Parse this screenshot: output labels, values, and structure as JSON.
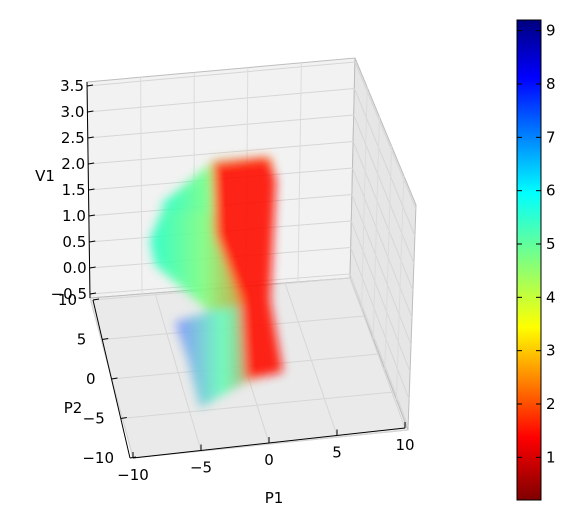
{
  "chart_data": {
    "type": "scatter",
    "projection": "3d",
    "title": "",
    "axes": {
      "x": {
        "label": "P1",
        "ticks": [
          "−10",
          "−5",
          "0",
          "5",
          "10"
        ],
        "tick_values": [
          -10,
          -5,
          0,
          5,
          10
        ],
        "range": [
          -10,
          10
        ]
      },
      "y": {
        "label": "P2",
        "ticks": [
          "−10",
          "−5",
          "0",
          "5",
          "10"
        ],
        "tick_values": [
          -10,
          -5,
          0,
          5,
          10
        ],
        "range": [
          -10,
          10
        ]
      },
      "z": {
        "label": "V1",
        "ticks": [
          "−0.5",
          "0.0",
          "0.5",
          "1.0",
          "1.5",
          "2.0",
          "2.5",
          "3.0",
          "3.5"
        ],
        "tick_values": [
          -0.5,
          0,
          0.5,
          1,
          1.5,
          2,
          2.5,
          3,
          3.5
        ],
        "range": [
          -0.5,
          3.5
        ]
      }
    },
    "colorbar": {
      "colormap": "jet_r",
      "range": [
        0.2,
        9.2
      ],
      "ticks": [
        "1",
        "2",
        "3",
        "4",
        "5",
        "6",
        "7",
        "8",
        "9"
      ],
      "tick_values": [
        1,
        2,
        3,
        4,
        5,
        6,
        7,
        8,
        9
      ]
    },
    "surface_color_stops": [
      {
        "value": 0.8,
        "color": "#ff0000"
      },
      {
        "value": 2.0,
        "color": "#ff7a00"
      },
      {
        "value": 5.0,
        "color": "#3dffb0"
      },
      {
        "value": 6.5,
        "color": "#6aa8ff"
      },
      {
        "value": 7.5,
        "color": "#8c8cff"
      }
    ],
    "grid": true,
    "legend": "none"
  }
}
